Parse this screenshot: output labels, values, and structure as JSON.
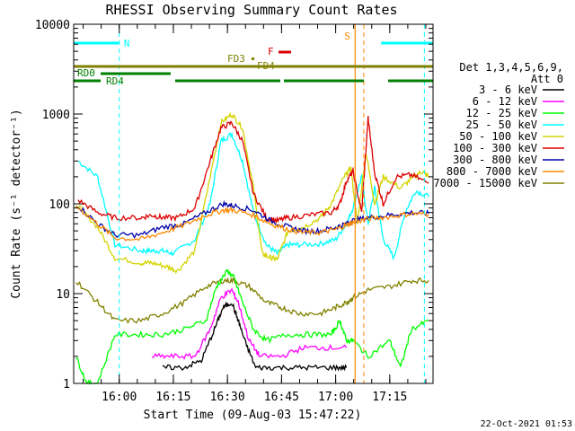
{
  "chart_data": {
    "type": "line",
    "title": "RHESSI Observing Summary Count Rates",
    "xlabel": "Start Time (09-Aug-03 15:47:22)",
    "ylabel": "Count Rate (s⁻¹ detector⁻¹)",
    "y_scale": "log",
    "ylim": [
      1,
      10000
    ],
    "y_ticks": [
      {
        "value": 1,
        "label": "1"
      },
      {
        "value": 10,
        "label": "10"
      },
      {
        "value": 100,
        "label": "100"
      },
      {
        "value": 1000,
        "label": "1000"
      },
      {
        "value": 10000,
        "label": "10000"
      }
    ],
    "xlim": [
      "15:47:22",
      "17:27:00"
    ],
    "x_ticks": [
      {
        "value": "16:00",
        "label": "16:00"
      },
      {
        "value": "16:15",
        "label": "16:15"
      },
      {
        "value": "16:30",
        "label": "16:30"
      },
      {
        "value": "16:45",
        "label": "16:45"
      },
      {
        "value": "17:00",
        "label": "17:00"
      },
      {
        "value": "17:15",
        "label": "17:15"
      }
    ],
    "legend": {
      "placement": "right",
      "header": [
        "Det 1,3,4,5,6,9,",
        "Att 0"
      ],
      "entries": [
        {
          "label": "3 - 6 keV",
          "color": "#000000"
        },
        {
          "label": "6 - 12 keV",
          "color": "#ff00ff"
        },
        {
          "label": "12 - 25 keV",
          "color": "#00ff00"
        },
        {
          "label": "25 - 50 keV",
          "color": "#00ffff"
        },
        {
          "label": "50 - 100 keV",
          "color": "#d4d400"
        },
        {
          "label": "100 - 300 keV",
          "color": "#dd0000"
        },
        {
          "label": "300 - 800 keV",
          "color": "#0000aa"
        },
        {
          "label": "800 - 7000 keV",
          "color": "#ff8800"
        },
        {
          "label": "7000 - 15000 keV",
          "color": "#808000"
        }
      ]
    },
    "series": [
      {
        "color": "#00ffff",
        "values": [
          [
            15.81,
            300
          ],
          [
            15.9,
            200
          ],
          [
            15.98,
            35
          ],
          [
            16.1,
            30
          ],
          [
            16.15,
            30
          ],
          [
            16.2,
            30
          ],
          [
            16.25,
            28
          ],
          [
            16.35,
            40
          ],
          [
            16.42,
            100
          ],
          [
            16.47,
            500
          ],
          [
            16.52,
            600
          ],
          [
            16.57,
            300
          ],
          [
            16.62,
            80
          ],
          [
            16.68,
            35
          ],
          [
            16.73,
            28
          ],
          [
            16.78,
            35
          ],
          [
            16.83,
            35
          ],
          [
            16.93,
            36
          ],
          [
            17.0,
            40
          ],
          [
            17.05,
            60
          ],
          [
            17.08,
            90
          ],
          [
            17.12,
            200
          ],
          [
            17.15,
            60
          ],
          [
            17.18,
            150
          ],
          [
            17.22,
            40
          ],
          [
            17.27,
            25
          ],
          [
            17.32,
            80
          ],
          [
            17.37,
            140
          ],
          [
            17.43,
            120
          ]
        ]
      },
      {
        "color": "#d4d400",
        "values": [
          [
            15.8,
            100
          ],
          [
            15.9,
            55
          ],
          [
            15.98,
            25
          ],
          [
            16.1,
            22
          ],
          [
            16.15,
            22
          ],
          [
            16.22,
            20
          ],
          [
            16.27,
            18
          ],
          [
            16.35,
            30
          ],
          [
            16.42,
            200
          ],
          [
            16.47,
            800
          ],
          [
            16.52,
            1000
          ],
          [
            16.57,
            700
          ],
          [
            16.62,
            150
          ],
          [
            16.66,
            28
          ],
          [
            16.7,
            25
          ],
          [
            16.73,
            24
          ],
          [
            16.78,
            50
          ],
          [
            16.85,
            55
          ],
          [
            16.93,
            70
          ],
          [
            16.98,
            100
          ],
          [
            17.04,
            200
          ],
          [
            17.07,
            250
          ],
          [
            17.1,
            60
          ],
          [
            17.14,
            380
          ],
          [
            17.18,
            100
          ],
          [
            17.22,
            200
          ],
          [
            17.3,
            150
          ],
          [
            17.36,
            200
          ],
          [
            17.4,
            230
          ],
          [
            17.43,
            200
          ]
        ]
      },
      {
        "color": "#dd0000",
        "values": [
          [
            15.81,
            110
          ],
          [
            15.9,
            80
          ],
          [
            15.98,
            70
          ],
          [
            16.1,
            70
          ],
          [
            16.15,
            75
          ],
          [
            16.2,
            70
          ],
          [
            16.27,
            70
          ],
          [
            16.35,
            90
          ],
          [
            16.42,
            300
          ],
          [
            16.47,
            700
          ],
          [
            16.52,
            800
          ],
          [
            16.57,
            500
          ],
          [
            16.62,
            130
          ],
          [
            16.68,
            70
          ],
          [
            16.73,
            65
          ],
          [
            16.78,
            70
          ],
          [
            16.88,
            75
          ],
          [
            16.98,
            80
          ],
          [
            17.02,
            100
          ],
          [
            17.05,
            180
          ],
          [
            17.08,
            230
          ],
          [
            17.12,
            80
          ],
          [
            17.15,
            900
          ],
          [
            17.18,
            220
          ],
          [
            17.22,
            100
          ],
          [
            17.28,
            200
          ],
          [
            17.35,
            210
          ],
          [
            17.43,
            170
          ]
        ]
      },
      {
        "color": "#0000aa",
        "values": [
          [
            15.8,
            100
          ],
          [
            15.9,
            60
          ],
          [
            15.98,
            45
          ],
          [
            16.1,
            45
          ],
          [
            16.2,
            55
          ],
          [
            16.3,
            60
          ],
          [
            16.4,
            80
          ],
          [
            16.48,
            100
          ],
          [
            16.53,
            95
          ],
          [
            16.62,
            85
          ],
          [
            16.7,
            65
          ],
          [
            16.78,
            55
          ],
          [
            16.85,
            50
          ],
          [
            16.93,
            50
          ],
          [
            17.0,
            55
          ],
          [
            17.05,
            60
          ],
          [
            17.08,
            65
          ],
          [
            17.15,
            70
          ],
          [
            17.25,
            75
          ],
          [
            17.35,
            80
          ],
          [
            17.43,
            78
          ]
        ]
      },
      {
        "color": "#ff8800",
        "values": [
          [
            15.8,
            95
          ],
          [
            15.9,
            60
          ],
          [
            15.98,
            42
          ],
          [
            16.1,
            40
          ],
          [
            16.2,
            48
          ],
          [
            16.3,
            58
          ],
          [
            16.4,
            75
          ],
          [
            16.48,
            85
          ],
          [
            16.53,
            85
          ],
          [
            16.62,
            75
          ],
          [
            16.7,
            60
          ],
          [
            16.78,
            52
          ],
          [
            16.85,
            48
          ],
          [
            16.93,
            48
          ],
          [
            17.0,
            52
          ],
          [
            17.05,
            58
          ],
          [
            17.08,
            62
          ],
          [
            17.15,
            68
          ],
          [
            17.25,
            72
          ],
          [
            17.35,
            78
          ],
          [
            17.43,
            76
          ]
        ]
      },
      {
        "color": "#808000",
        "values": [
          [
            15.8,
            14
          ],
          [
            15.9,
            8
          ],
          [
            15.98,
            5
          ],
          [
            16.1,
            5
          ],
          [
            16.2,
            6
          ],
          [
            16.3,
            8
          ],
          [
            16.4,
            12
          ],
          [
            16.48,
            14
          ],
          [
            16.53,
            14
          ],
          [
            16.6,
            12
          ],
          [
            16.68,
            8
          ],
          [
            16.75,
            7
          ],
          [
            16.83,
            6
          ],
          [
            16.93,
            6
          ],
          [
            17.0,
            7
          ],
          [
            17.05,
            8
          ],
          [
            17.08,
            9
          ],
          [
            17.15,
            11
          ],
          [
            17.25,
            12
          ],
          [
            17.35,
            14
          ],
          [
            17.43,
            14
          ]
        ]
      },
      {
        "color": "#00ff00",
        "values": [
          [
            15.8,
            2
          ],
          [
            15.85,
            1
          ],
          [
            15.9,
            1
          ],
          [
            15.98,
            3.5
          ],
          [
            16.1,
            3.5
          ],
          [
            16.2,
            3.5
          ],
          [
            16.3,
            4
          ],
          [
            16.4,
            5
          ],
          [
            16.45,
            12
          ],
          [
            16.5,
            18
          ],
          [
            16.53,
            15
          ],
          [
            16.57,
            8
          ],
          [
            16.62,
            4
          ],
          [
            16.68,
            3
          ],
          [
            16.78,
            3.5
          ],
          [
            16.88,
            3.5
          ],
          [
            16.98,
            3.5
          ],
          [
            17.02,
            5
          ],
          [
            17.05,
            3
          ],
          [
            17.08,
            3
          ],
          [
            17.15,
            2
          ],
          [
            17.25,
            3
          ],
          [
            17.3,
            1.5
          ],
          [
            17.35,
            4
          ],
          [
            17.43,
            5
          ]
        ]
      },
      {
        "color": "#ff00ff",
        "values": [
          [
            16.15,
            2
          ],
          [
            16.25,
            2
          ],
          [
            16.35,
            2
          ],
          [
            16.42,
            4
          ],
          [
            16.47,
            9
          ],
          [
            16.52,
            11
          ],
          [
            16.55,
            8
          ],
          [
            16.6,
            3
          ],
          [
            16.65,
            2
          ],
          [
            16.75,
            2
          ],
          [
            16.85,
            2.5
          ],
          [
            16.95,
            2.5
          ],
          [
            17.05,
            2.5
          ]
        ]
      },
      {
        "color": "#000000",
        "values": [
          [
            16.2,
            1.5
          ],
          [
            16.3,
            1.5
          ],
          [
            16.38,
            1.8
          ],
          [
            16.44,
            4
          ],
          [
            16.48,
            7
          ],
          [
            16.52,
            8
          ],
          [
            16.55,
            5
          ],
          [
            16.58,
            3
          ],
          [
            16.63,
            1.5
          ],
          [
            16.7,
            1.5
          ],
          [
            16.8,
            1.5
          ],
          [
            16.9,
            1.5
          ],
          [
            17.0,
            1.5
          ],
          [
            17.05,
            1.5
          ]
        ]
      }
    ],
    "annotations": [
      {
        "label": "N",
        "color": "#00ffff"
      },
      {
        "label": "S",
        "color": "#ff8800"
      },
      {
        "label": "F",
        "color": "#dd0000"
      },
      {
        "label": "FD3",
        "color": "#808000"
      },
      {
        "label": "FD4",
        "color": "#808000"
      },
      {
        "label": "RD0",
        "color": "#008000"
      },
      {
        "label": "RD4",
        "color": "#008000"
      }
    ]
  },
  "footer_date": "22-Oct-2021 01:53"
}
